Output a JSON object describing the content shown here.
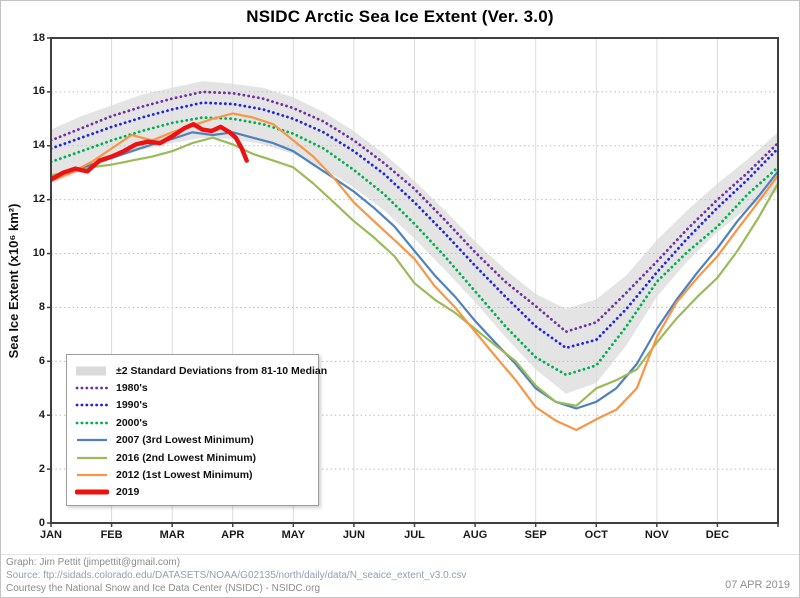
{
  "footer": {
    "credit": "Graph: Jim Pettit (jimpettit@gmail.com)",
    "source": "Source: ftp://sidads.colorado.edu/DATASETS/NOAA/G02135/north/daily/data/N_seaice_extent_v3.0.csv",
    "courtesy": "Courtesy the National Snow and Ice Data Center (NSIDC) - NSIDC.org",
    "date_stamp": "07 APR 2019"
  },
  "chart_data": {
    "type": "line",
    "title": "NSIDC Arctic Sea Ice Extent (Ver. 3.0)",
    "ylabel": "Sea Ice Extent (x10⁶ km²)",
    "ylim": [
      0,
      18
    ],
    "yticks": [
      0,
      2,
      4,
      6,
      8,
      10,
      12,
      14,
      16,
      18
    ],
    "months": [
      "JAN",
      "FEB",
      "MAR",
      "APR",
      "MAY",
      "JUN",
      "JUL",
      "AUG",
      "SEP",
      "OCT",
      "NOV",
      "DEC"
    ],
    "x_unit": "months, 0 = Jan 1 through 12 = Dec 31",
    "grid": true,
    "legend_position": "lower-left",
    "band": {
      "label": "±2 Standard Deviations from 81-10 Median",
      "color": "#e4e4e4",
      "x": [
        0,
        0.5,
        1,
        1.5,
        2,
        2.5,
        3,
        3.5,
        4,
        4.5,
        5,
        5.5,
        6,
        6.5,
        7,
        7.5,
        8,
        8.5,
        9,
        9.5,
        10,
        10.5,
        11,
        11.5,
        12
      ],
      "top": [
        14.6,
        15.1,
        15.5,
        15.9,
        16.15,
        16.4,
        16.3,
        16.15,
        15.8,
        15.25,
        14.55,
        13.7,
        12.7,
        11.6,
        10.45,
        9.4,
        8.5,
        7.95,
        8.3,
        9.2,
        10.5,
        11.6,
        12.6,
        13.5,
        14.5
      ],
      "bottom": [
        12.6,
        13.05,
        13.5,
        13.85,
        14.1,
        14.3,
        14.25,
        14.05,
        13.7,
        13.15,
        12.45,
        11.6,
        10.55,
        9.4,
        8.2,
        6.9,
        5.7,
        4.8,
        5.2,
        6.6,
        8.4,
        9.7,
        10.8,
        11.7,
        12.3
      ]
    },
    "series": [
      {
        "label": "1980's",
        "style": "dotted",
        "color": "#7030a0",
        "x": [
          0,
          0.5,
          1,
          1.5,
          2,
          2.5,
          3,
          3.5,
          4,
          4.5,
          5,
          5.5,
          6,
          6.5,
          7,
          7.5,
          8,
          8.5,
          9,
          9.5,
          10,
          10.5,
          11,
          11.5,
          12
        ],
        "values": [
          14.2,
          14.65,
          15.1,
          15.45,
          15.75,
          16.0,
          15.95,
          15.75,
          15.4,
          14.9,
          14.2,
          13.35,
          12.4,
          11.25,
          10.05,
          8.95,
          8.05,
          7.1,
          7.45,
          8.55,
          9.7,
          10.9,
          12.0,
          13.0,
          14.1
        ]
      },
      {
        "label": "1990's",
        "style": "dotted",
        "color": "#2323dc",
        "x": [
          0,
          0.5,
          1,
          1.5,
          2,
          2.5,
          3,
          3.5,
          4,
          4.5,
          5,
          5.5,
          6,
          6.5,
          7,
          7.5,
          8,
          8.5,
          9,
          9.5,
          10,
          10.5,
          11,
          11.5,
          12
        ],
        "values": [
          13.9,
          14.3,
          14.7,
          15.05,
          15.35,
          15.6,
          15.55,
          15.35,
          15.0,
          14.5,
          13.8,
          12.95,
          11.9,
          10.75,
          9.55,
          8.4,
          7.3,
          6.5,
          6.8,
          7.95,
          9.3,
          10.55,
          11.7,
          12.75,
          13.9
        ]
      },
      {
        "label": "2000's",
        "style": "dotted",
        "color": "#00b050",
        "x": [
          0,
          0.5,
          1,
          1.5,
          2,
          2.5,
          3,
          3.5,
          4,
          4.5,
          5,
          5.5,
          6,
          6.5,
          7,
          7.5,
          8,
          8.5,
          9,
          9.5,
          10,
          10.5,
          11,
          11.5,
          12
        ],
        "values": [
          13.4,
          13.8,
          14.2,
          14.55,
          14.85,
          15.05,
          15.0,
          14.8,
          14.45,
          13.9,
          13.1,
          12.2,
          11.1,
          9.9,
          8.6,
          7.3,
          6.15,
          5.5,
          5.85,
          7.3,
          8.95,
          10.05,
          11.0,
          12.2,
          13.2
        ]
      },
      {
        "label": "2007 (3rd Lowest Minimum)",
        "style": "solid",
        "color": "#4f81bd",
        "x": [
          0,
          0.33,
          0.67,
          1,
          1.33,
          1.67,
          2,
          2.33,
          2.67,
          3,
          3.33,
          3.67,
          4,
          4.33,
          4.67,
          5,
          5.33,
          5.67,
          6,
          6.33,
          6.67,
          7,
          7.33,
          7.67,
          8,
          8.33,
          8.67,
          9,
          9.33,
          9.67,
          10,
          10.33,
          10.67,
          11,
          11.33,
          11.67,
          12
        ],
        "values": [
          12.75,
          13.0,
          13.3,
          13.55,
          13.8,
          14.05,
          14.25,
          14.5,
          14.4,
          14.5,
          14.3,
          14.1,
          13.8,
          13.3,
          12.8,
          12.3,
          11.7,
          11.0,
          10.1,
          9.2,
          8.4,
          7.5,
          6.7,
          5.9,
          5.0,
          4.5,
          4.25,
          4.5,
          5.0,
          5.9,
          7.2,
          8.3,
          9.3,
          10.2,
          11.2,
          12.1,
          13.05
        ]
      },
      {
        "label": "2016 (2nd Lowest Minimum)",
        "style": "solid",
        "color": "#9bbb59",
        "x": [
          0,
          0.33,
          0.67,
          1,
          1.33,
          1.67,
          2,
          2.33,
          2.67,
          3,
          3.33,
          3.67,
          4,
          4.33,
          4.67,
          5,
          5.33,
          5.67,
          6,
          6.33,
          6.67,
          7,
          7.33,
          7.67,
          8,
          8.33,
          8.67,
          9,
          9.33,
          9.67,
          10,
          10.33,
          10.67,
          11,
          11.33,
          11.67,
          12
        ],
        "values": [
          12.9,
          13.05,
          13.2,
          13.3,
          13.45,
          13.6,
          13.8,
          14.1,
          14.3,
          14.05,
          13.7,
          13.45,
          13.2,
          12.6,
          11.9,
          11.2,
          10.6,
          9.9,
          8.9,
          8.3,
          7.8,
          7.2,
          6.6,
          6.0,
          5.1,
          4.5,
          4.35,
          5.0,
          5.3,
          5.7,
          6.7,
          7.6,
          8.4,
          9.1,
          10.1,
          11.3,
          12.6
        ]
      },
      {
        "label": "2012 (1st Lowest Minimum)",
        "style": "solid",
        "color": "#f79646",
        "x": [
          0,
          0.33,
          0.67,
          1,
          1.33,
          1.67,
          2,
          2.33,
          2.67,
          3,
          3.33,
          3.67,
          4,
          4.33,
          4.67,
          5,
          5.33,
          5.67,
          6,
          6.33,
          6.67,
          7,
          7.33,
          7.67,
          8,
          8.33,
          8.67,
          9,
          9.33,
          9.67,
          10,
          10.33,
          10.67,
          11,
          11.33,
          11.67,
          12
        ],
        "values": [
          12.7,
          13.0,
          13.4,
          13.9,
          14.4,
          14.2,
          14.5,
          14.75,
          15.0,
          15.2,
          15.05,
          14.8,
          14.2,
          13.6,
          12.8,
          11.9,
          11.2,
          10.5,
          9.8,
          8.8,
          8.0,
          7.1,
          6.2,
          5.3,
          4.3,
          3.8,
          3.45,
          3.85,
          4.2,
          5.0,
          6.9,
          8.2,
          9.1,
          9.9,
          10.9,
          11.9,
          12.9
        ]
      },
      {
        "label": "2019",
        "style": "thick",
        "color": "#ee1111",
        "x": [
          0,
          0.2,
          0.4,
          0.6,
          0.8,
          1.0,
          1.2,
          1.4,
          1.6,
          1.8,
          2.0,
          2.2,
          2.35,
          2.5,
          2.65,
          2.8,
          2.95,
          3.05,
          3.15,
          3.23
        ],
        "values": [
          12.75,
          13.0,
          13.15,
          13.05,
          13.45,
          13.6,
          13.8,
          14.05,
          14.15,
          14.1,
          14.35,
          14.65,
          14.8,
          14.6,
          14.55,
          14.7,
          14.5,
          14.3,
          13.9,
          13.45
        ]
      }
    ]
  }
}
